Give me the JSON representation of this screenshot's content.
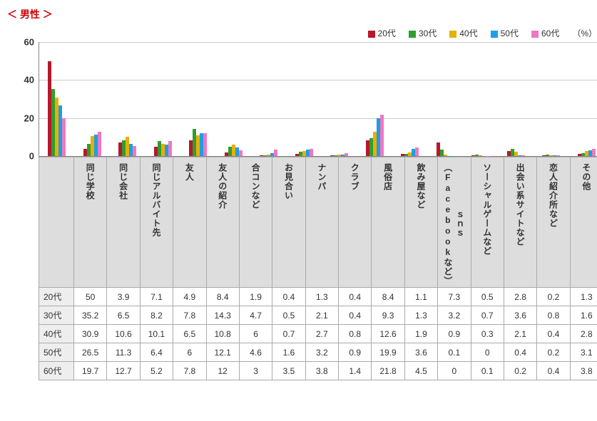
{
  "title": "＜ 男性 ＞",
  "unit": "（%）",
  "ylim": [
    0,
    60
  ],
  "ytick_step": 20,
  "legend_labels": [
    "20代",
    "30代",
    "40代",
    "50代",
    "60代"
  ],
  "series_colors": [
    "#b7182b",
    "#2f9e2f",
    "#e8b000",
    "#1e9de8",
    "#f078c0"
  ],
  "categories": [
    "同じ学校",
    "同じ会社",
    "同じアルバイト先",
    "友人",
    "友人の紹介",
    "合コンなど",
    "お見合い",
    "ナンパ",
    "クラブ",
    "風俗店",
    "飲み屋など",
    "ｓｎｓ（Facebookなど）",
    "ソーシャルゲームなど",
    "出会い系サイトなど",
    "恋人紹介所など",
    "その他"
  ],
  "rows": [
    {
      "label": "20代",
      "values": [
        50.0,
        3.9,
        7.1,
        4.9,
        8.4,
        1.9,
        0.4,
        1.3,
        0.4,
        8.4,
        1.1,
        7.3,
        0.5,
        2.8,
        0.2,
        1.3
      ]
    },
    {
      "label": "30代",
      "values": [
        35.2,
        6.5,
        8.2,
        7.8,
        14.3,
        4.7,
        0.5,
        2.1,
        0.4,
        9.3,
        1.3,
        3.2,
        0.7,
        3.6,
        0.8,
        1.6
      ]
    },
    {
      "label": "40代",
      "values": [
        30.9,
        10.6,
        10.1,
        6.5,
        10.8,
        6.0,
        0.7,
        2.7,
        0.8,
        12.6,
        1.9,
        0.9,
        0.3,
        2.1,
        0.4,
        2.8
      ]
    },
    {
      "label": "50代",
      "values": [
        26.5,
        11.3,
        6.4,
        6.0,
        12.1,
        4.6,
        1.6,
        3.2,
        0.9,
        19.9,
        3.6,
        0.1,
        0,
        0.4,
        0.2,
        3.1
      ]
    },
    {
      "label": "60代",
      "values": [
        19.7,
        12.7,
        5.2,
        7.8,
        12.0,
        3.0,
        3.5,
        3.8,
        1.4,
        21.8,
        4.5,
        0,
        0.1,
        0.2,
        0.4,
        3.8
      ]
    }
  ],
  "grid_color": "#ccc",
  "header_bg": "#ddd",
  "rowhead_bg": "#eee"
}
